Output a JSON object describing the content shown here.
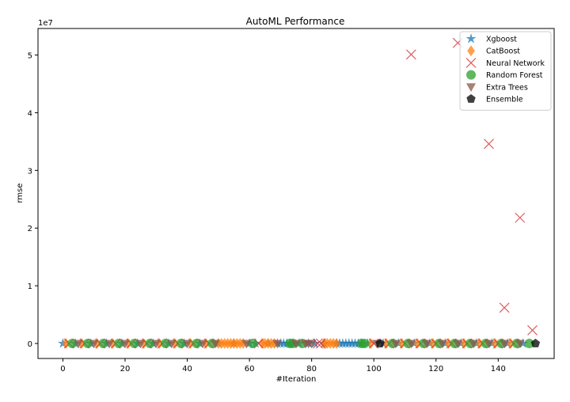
{
  "chart_data": {
    "type": "scatter",
    "title": "AutoML Performance",
    "xlabel": "#Iteration",
    "ylabel": "rmse",
    "y_scale_label": "1e7",
    "xlim": [
      -8,
      158
    ],
    "ylim": [
      -2600000,
      54600000
    ],
    "xticks": [
      0,
      20,
      40,
      60,
      80,
      100,
      120,
      140
    ],
    "yticks": [
      0,
      10000000,
      20000000,
      30000000,
      40000000,
      50000000
    ],
    "ytick_labels": [
      "0",
      "1",
      "2",
      "3",
      "4",
      "5"
    ],
    "grid": false,
    "legend_position": "upper right",
    "series": [
      {
        "name": "Xgboost",
        "marker": "star",
        "color": "#1f77b4",
        "x": [
          0,
          4,
          9,
          14,
          19,
          24,
          29,
          34,
          39,
          44,
          50,
          55,
          60,
          62,
          66,
          69,
          70,
          71,
          72,
          73,
          74,
          76,
          79,
          81,
          84,
          88,
          89,
          90,
          91,
          92,
          93,
          94,
          95,
          96,
          98,
          103,
          108,
          113,
          118,
          123,
          128,
          133,
          138,
          143,
          148
        ],
        "y": [
          0,
          0,
          0,
          0,
          0,
          0,
          0,
          0,
          0,
          0,
          0,
          0,
          0,
          0,
          0,
          0,
          0,
          0,
          0,
          0,
          0,
          0,
          0,
          0,
          0,
          0,
          0,
          0,
          0,
          0,
          0,
          0,
          0,
          0,
          0,
          0,
          0,
          0,
          0,
          0,
          0,
          0,
          0,
          0,
          0
        ]
      },
      {
        "name": "CatBoost",
        "marker": "diamond",
        "color": "#ff7f0e",
        "x": [
          1,
          6,
          11,
          16,
          21,
          26,
          31,
          36,
          41,
          46,
          50,
          51,
          52,
          53,
          54,
          55,
          56,
          57,
          58,
          64,
          65,
          66,
          67,
          68,
          84,
          85,
          86,
          87,
          88,
          99,
          104,
          109,
          114,
          119,
          124,
          129,
          134,
          139,
          144
        ],
        "y": [
          0,
          0,
          0,
          0,
          0,
          0,
          0,
          0,
          0,
          0,
          0,
          0,
          0,
          0,
          0,
          0,
          0,
          0,
          0,
          0,
          0,
          0,
          0,
          0,
          0,
          0,
          0,
          0,
          0,
          0,
          0,
          0,
          0,
          0,
          0,
          0,
          0,
          0,
          0
        ]
      },
      {
        "name": "Neural Network",
        "marker": "x",
        "color": "#d62728",
        "x": [
          2,
          7,
          12,
          17,
          22,
          27,
          32,
          37,
          42,
          47,
          63,
          82,
          83,
          100,
          105,
          110,
          112,
          115,
          120,
          125,
          127,
          130,
          135,
          137,
          140,
          142,
          145,
          147,
          151
        ],
        "y": [
          0,
          0,
          0,
          0,
          0,
          0,
          0,
          0,
          0,
          0,
          0,
          0,
          0,
          0,
          0,
          0,
          50100000,
          0,
          0,
          0,
          52100000,
          0,
          0,
          34600000,
          0,
          6200000,
          0,
          21800000,
          2300000
        ]
      },
      {
        "name": "Random Forest",
        "marker": "circle",
        "color": "#2ca02c",
        "x": [
          3,
          8,
          13,
          18,
          23,
          28,
          33,
          38,
          43,
          48,
          61,
          73,
          74,
          77,
          96,
          97,
          106,
          111,
          116,
          121,
          126,
          131,
          136,
          141,
          146,
          150
        ],
        "y": [
          0,
          0,
          0,
          0,
          0,
          0,
          0,
          0,
          0,
          0,
          0,
          0,
          0,
          0,
          0,
          0,
          0,
          0,
          0,
          0,
          0,
          0,
          0,
          0,
          0,
          0
        ]
      },
      {
        "name": "Extra Trees",
        "marker": "triangle_down",
        "color": "#8c564b",
        "x": [
          5,
          10,
          15,
          20,
          25,
          30,
          35,
          40,
          45,
          49,
          59,
          69,
          75,
          78,
          79,
          80,
          101,
          107,
          112,
          117,
          122,
          127,
          132,
          137,
          142,
          147
        ],
        "y": [
          0,
          0,
          0,
          0,
          0,
          0,
          0,
          0,
          0,
          0,
          0,
          0,
          0,
          0,
          0,
          0,
          0,
          0,
          0,
          0,
          0,
          0,
          0,
          0,
          0,
          0
        ]
      },
      {
        "name": "Ensemble",
        "marker": "pentagon",
        "color": "#000000",
        "x": [
          102,
          152
        ],
        "y": [
          0,
          0
        ]
      }
    ]
  }
}
